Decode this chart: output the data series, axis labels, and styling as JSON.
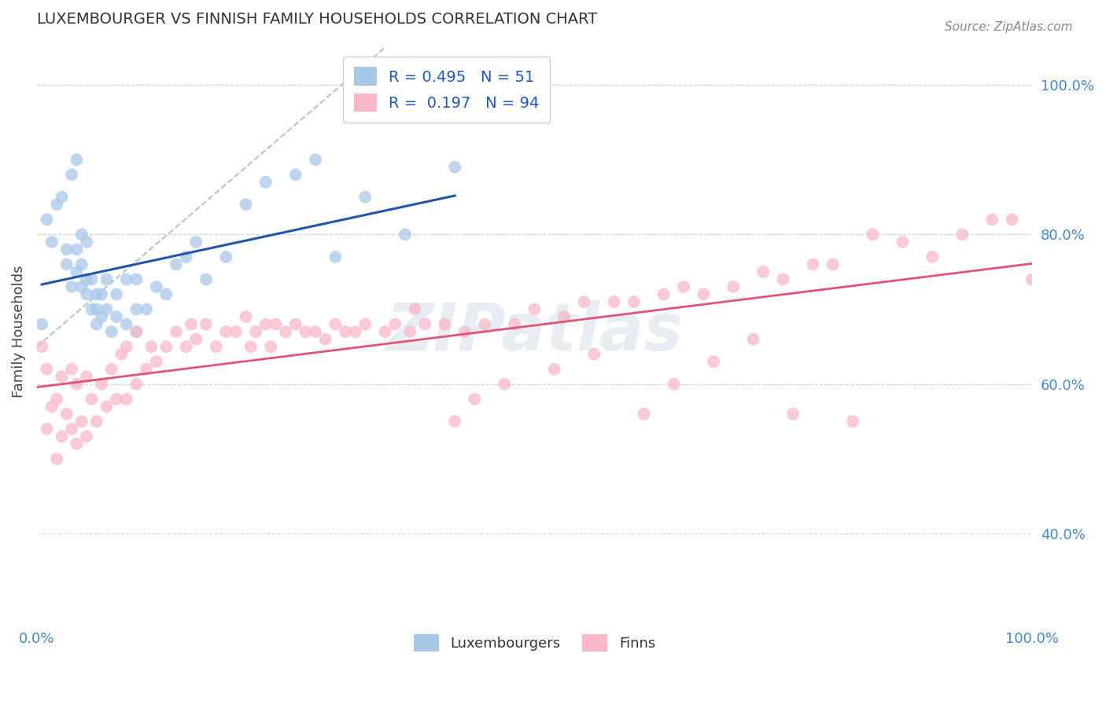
{
  "title": "LUXEMBOURGER VS FINNISH FAMILY HOUSEHOLDS CORRELATION CHART",
  "source": "Source: ZipAtlas.com",
  "ylabel": "Family Households",
  "ylabel_right_ticks": [
    "40.0%",
    "60.0%",
    "80.0%",
    "100.0%"
  ],
  "ylabel_right_vals": [
    0.4,
    0.6,
    0.8,
    1.0
  ],
  "legend_blue_r": "R = 0.495",
  "legend_blue_n": "N = 51",
  "legend_pink_r": "R =  0.197",
  "legend_pink_n": "N = 94",
  "blue_color": "#a8c8e8",
  "pink_color": "#f8b8c8",
  "blue_line_color": "#2255aa",
  "pink_line_color": "#e05575",
  "dashed_line_color": "#b0c4d8",
  "background_color": "#ffffff",
  "grid_color": "#c8d4e4",
  "lux_x": [
    0.005,
    0.01,
    0.015,
    0.02,
    0.025,
    0.03,
    0.03,
    0.035,
    0.035,
    0.04,
    0.04,
    0.04,
    0.045,
    0.045,
    0.045,
    0.05,
    0.05,
    0.05,
    0.055,
    0.055,
    0.06,
    0.06,
    0.06,
    0.065,
    0.065,
    0.07,
    0.07,
    0.075,
    0.08,
    0.08,
    0.09,
    0.09,
    0.1,
    0.1,
    0.1,
    0.11,
    0.12,
    0.13,
    0.14,
    0.15,
    0.16,
    0.17,
    0.19,
    0.21,
    0.23,
    0.26,
    0.28,
    0.3,
    0.33,
    0.37,
    0.42
  ],
  "lux_y": [
    0.68,
    0.82,
    0.79,
    0.84,
    0.85,
    0.78,
    0.76,
    0.73,
    0.88,
    0.9,
    0.78,
    0.75,
    0.73,
    0.76,
    0.8,
    0.79,
    0.74,
    0.72,
    0.7,
    0.74,
    0.72,
    0.7,
    0.68,
    0.72,
    0.69,
    0.74,
    0.7,
    0.67,
    0.72,
    0.69,
    0.74,
    0.68,
    0.74,
    0.7,
    0.67,
    0.7,
    0.73,
    0.72,
    0.76,
    0.77,
    0.79,
    0.74,
    0.77,
    0.84,
    0.87,
    0.88,
    0.9,
    0.77,
    0.85,
    0.8,
    0.89
  ],
  "finn_x": [
    0.005,
    0.01,
    0.01,
    0.015,
    0.02,
    0.02,
    0.025,
    0.025,
    0.03,
    0.035,
    0.035,
    0.04,
    0.04,
    0.045,
    0.05,
    0.05,
    0.055,
    0.06,
    0.065,
    0.07,
    0.075,
    0.08,
    0.085,
    0.09,
    0.09,
    0.1,
    0.1,
    0.11,
    0.115,
    0.12,
    0.13,
    0.14,
    0.15,
    0.155,
    0.16,
    0.17,
    0.18,
    0.19,
    0.2,
    0.21,
    0.215,
    0.22,
    0.23,
    0.235,
    0.24,
    0.25,
    0.26,
    0.27,
    0.28,
    0.29,
    0.3,
    0.31,
    0.32,
    0.33,
    0.35,
    0.36,
    0.375,
    0.39,
    0.41,
    0.43,
    0.45,
    0.48,
    0.5,
    0.53,
    0.55,
    0.58,
    0.6,
    0.63,
    0.65,
    0.67,
    0.7,
    0.73,
    0.75,
    0.78,
    0.8,
    0.84,
    0.87,
    0.9,
    0.93,
    0.96,
    0.98,
    1.0,
    0.38,
    0.42,
    0.44,
    0.47,
    0.52,
    0.56,
    0.61,
    0.64,
    0.68,
    0.72,
    0.76,
    0.82
  ],
  "finn_y": [
    0.65,
    0.54,
    0.62,
    0.57,
    0.5,
    0.58,
    0.53,
    0.61,
    0.56,
    0.54,
    0.62,
    0.52,
    0.6,
    0.55,
    0.53,
    0.61,
    0.58,
    0.55,
    0.6,
    0.57,
    0.62,
    0.58,
    0.64,
    0.58,
    0.65,
    0.6,
    0.67,
    0.62,
    0.65,
    0.63,
    0.65,
    0.67,
    0.65,
    0.68,
    0.66,
    0.68,
    0.65,
    0.67,
    0.67,
    0.69,
    0.65,
    0.67,
    0.68,
    0.65,
    0.68,
    0.67,
    0.68,
    0.67,
    0.67,
    0.66,
    0.68,
    0.67,
    0.67,
    0.68,
    0.67,
    0.68,
    0.67,
    0.68,
    0.68,
    0.67,
    0.68,
    0.68,
    0.7,
    0.69,
    0.71,
    0.71,
    0.71,
    0.72,
    0.73,
    0.72,
    0.73,
    0.75,
    0.74,
    0.76,
    0.76,
    0.8,
    0.79,
    0.77,
    0.8,
    0.82,
    0.82,
    0.74,
    0.7,
    0.55,
    0.58,
    0.6,
    0.62,
    0.64,
    0.56,
    0.6,
    0.63,
    0.66,
    0.56,
    0.55
  ],
  "xlim": [
    0.0,
    1.0
  ],
  "ylim": [
    0.28,
    1.06
  ]
}
